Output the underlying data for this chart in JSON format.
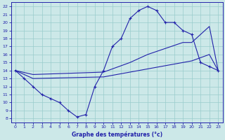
{
  "title": "Graphe des températures (°c)",
  "bg_color": "#cce8e8",
  "grid_color": "#99cccc",
  "line_color": "#2222aa",
  "x_ticks": [
    0,
    1,
    2,
    3,
    4,
    5,
    6,
    7,
    8,
    9,
    10,
    11,
    12,
    13,
    14,
    15,
    16,
    17,
    18,
    19,
    20,
    21,
    22,
    23
  ],
  "y_ticks": [
    8,
    9,
    10,
    11,
    12,
    13,
    14,
    15,
    16,
    17,
    18,
    19,
    20,
    21,
    22
  ],
  "xlim": [
    -0.5,
    23.5
  ],
  "ylim": [
    7.5,
    22.5
  ],
  "curve_top_x": [
    0,
    1,
    2,
    3,
    4,
    5,
    6,
    7,
    8,
    9,
    10,
    11,
    12,
    13,
    14,
    15,
    16,
    17,
    18,
    19,
    20,
    21,
    22,
    23
  ],
  "curve_top_y": [
    14,
    13,
    12,
    11,
    10.5,
    10,
    9,
    8.2,
    8.5,
    12,
    14,
    17,
    18,
    20.5,
    21.5,
    22,
    21.5,
    20,
    20,
    19,
    18.5,
    15,
    14.5,
    14
  ],
  "curve_mid_x": [
    0,
    2,
    10,
    13,
    15,
    19,
    20,
    22,
    23
  ],
  "curve_mid_y": [
    14,
    13.5,
    13.8,
    15,
    16,
    17.5,
    17.5,
    19.5,
    14
  ],
  "curve_bot_x": [
    0,
    2,
    10,
    13,
    15,
    19,
    20,
    22,
    23
  ],
  "curve_bot_y": [
    14,
    13,
    13.2,
    13.8,
    14.2,
    15,
    15.2,
    16,
    14
  ]
}
